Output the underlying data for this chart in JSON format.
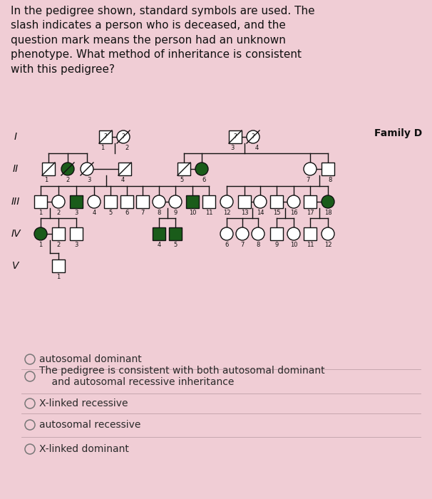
{
  "background_color": "#f0cdd5",
  "text_color": "#111111",
  "title_text": "In the pedigree shown, standard symbols are used. The\nslash indicates a person who is deceased, and the\nquestion mark means the person had an unknown\nphenotype. What method of inheritance is consistent\nwith this pedigree?",
  "family_label": "Family D",
  "generation_labels": [
    "I",
    "II",
    "III",
    "IV",
    "V"
  ],
  "filled_color": "#1a5c1a",
  "empty_color": "#ffffff",
  "edge_color": "#111111",
  "sz": 9,
  "answer_options": [
    "autosomal dominant",
    "The pedigree is consistent with both autosomal dominant\n    and autosomal recessive inheritance",
    "X-linked recessive",
    "autosomal recessive",
    "X-linked dominant"
  ]
}
